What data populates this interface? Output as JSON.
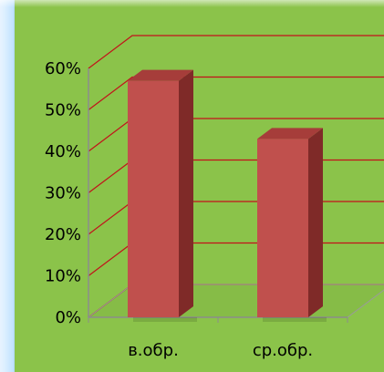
{
  "chart_data": {
    "type": "bar",
    "categories": [
      "в.обр.",
      "ср.обр."
    ],
    "series": [
      {
        "values": [
          57,
          43
        ]
      }
    ],
    "title": "",
    "xlabel": "",
    "ylabel": "",
    "ylim": [
      0,
      60
    ],
    "yticks": [
      "0%",
      "10%",
      "20%",
      "30%",
      "40%",
      "50%",
      "60%"
    ],
    "grid": true,
    "style": {
      "background": "#8bc34a",
      "grid_color": "#c2121a",
      "bar_face": "#c0504d",
      "bar_side": "#7f2a28",
      "bar_top": "#a63d3a"
    }
  }
}
